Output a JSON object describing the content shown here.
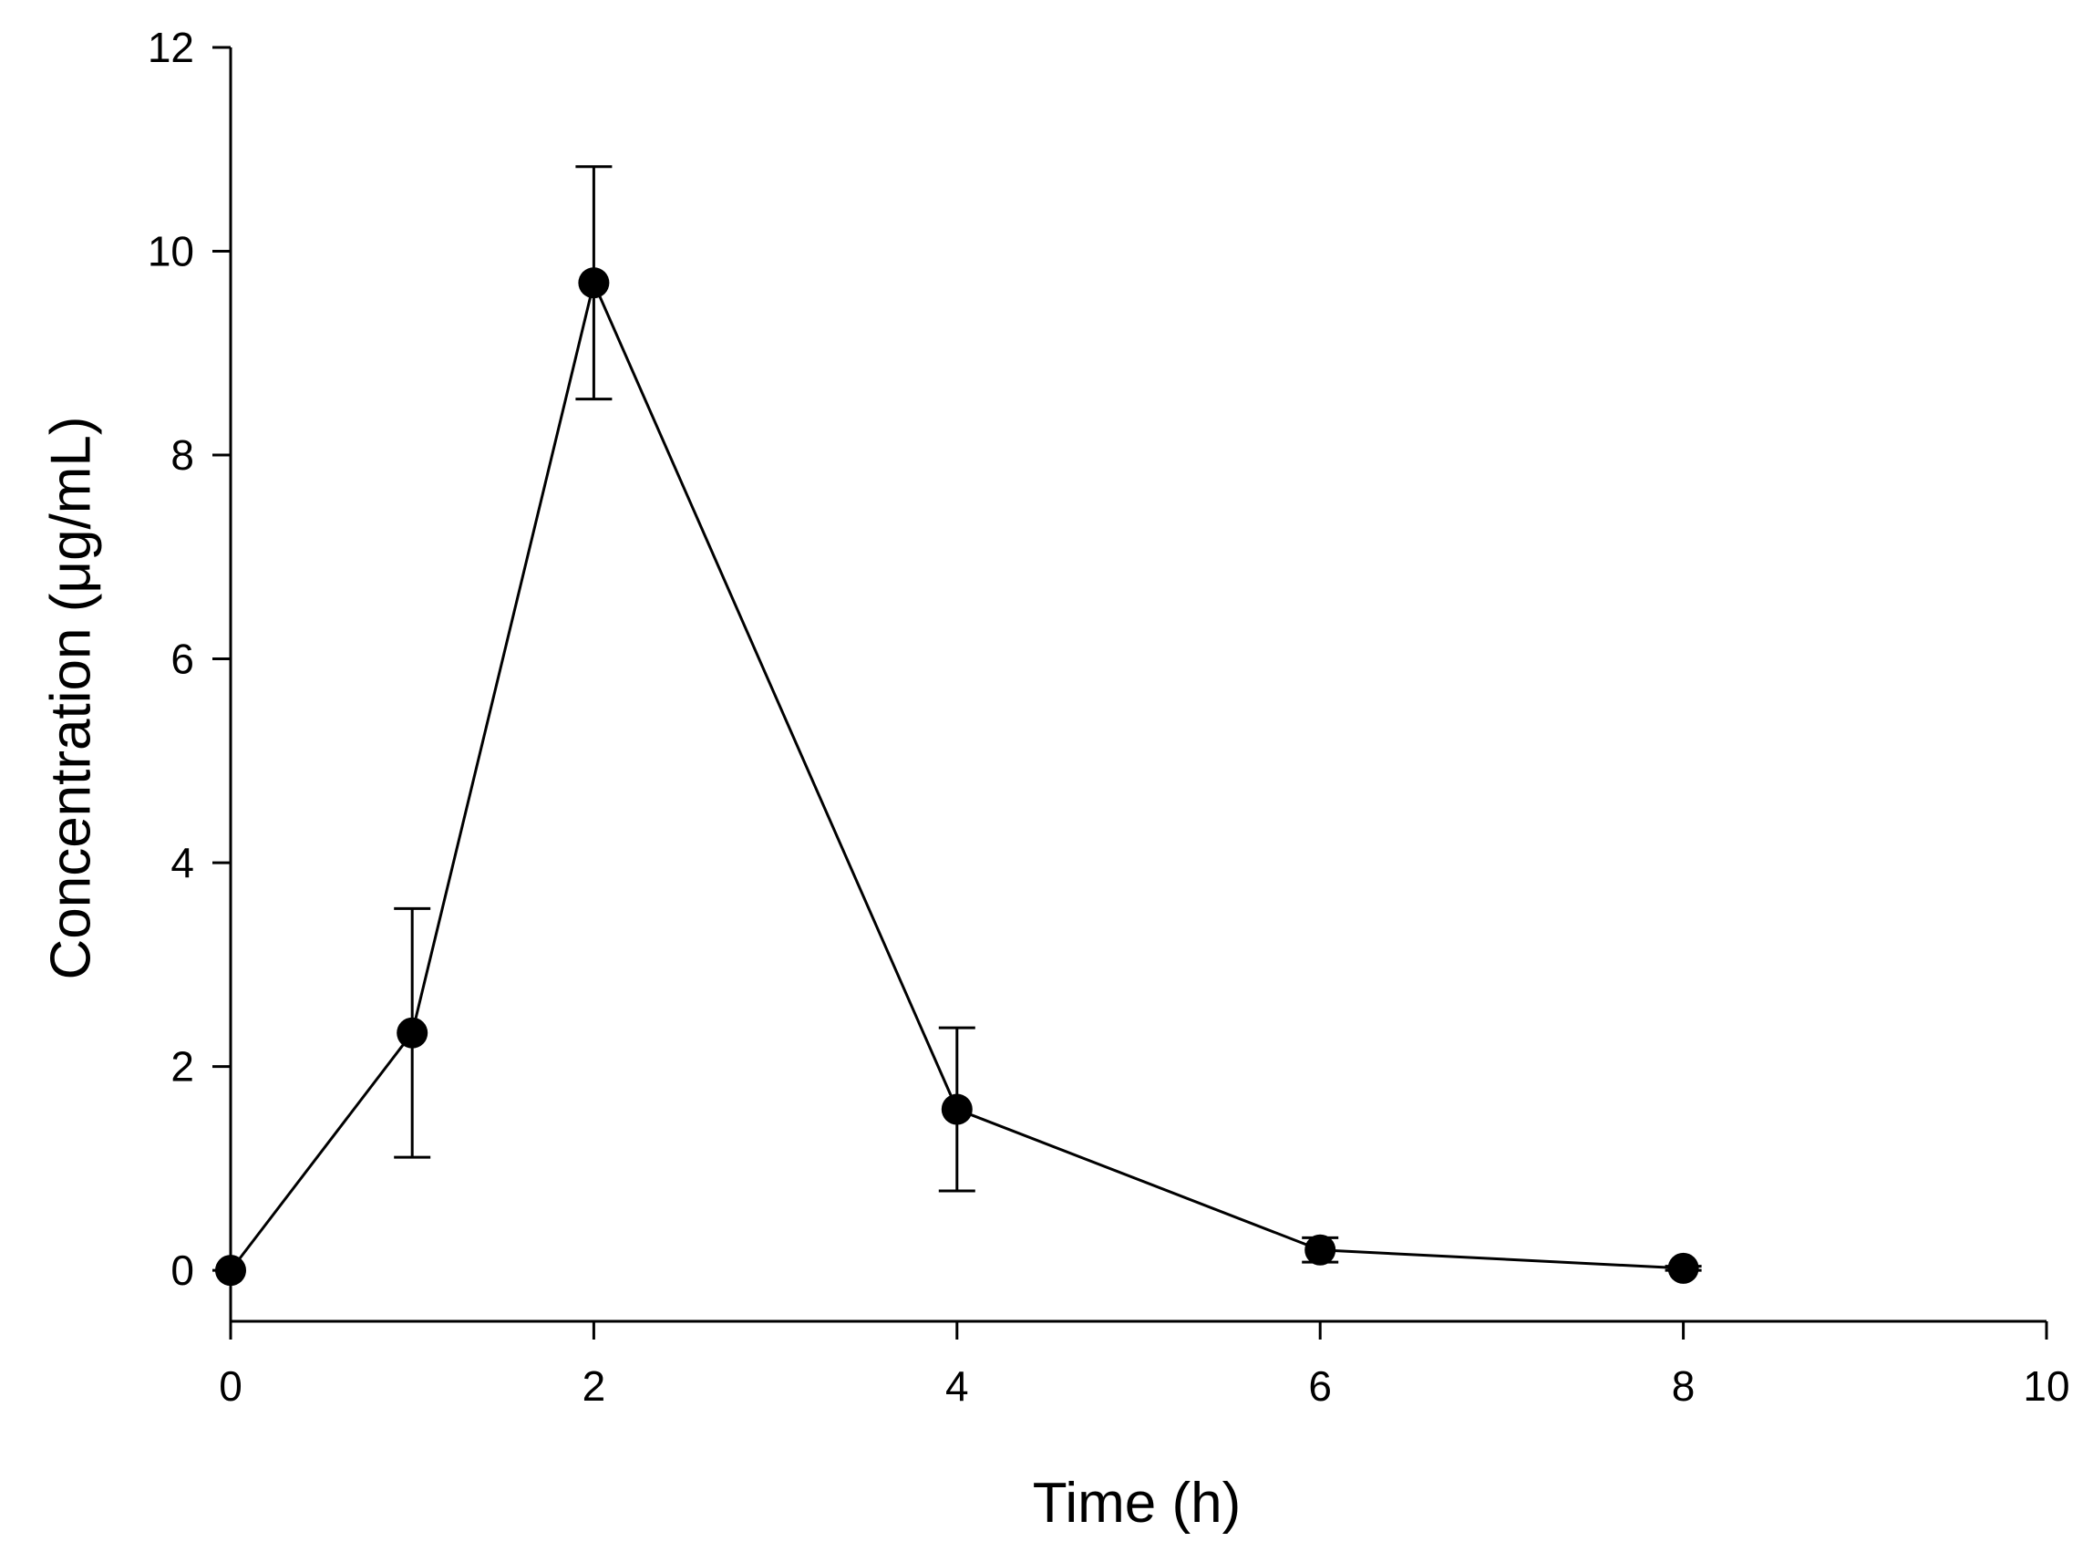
{
  "chart_data": {
    "type": "scatter",
    "xlabel": "Time (h)",
    "ylabel": "Concentration (μg/mL)",
    "xlim": [
      0,
      10
    ],
    "ylim": [
      -0.5,
      12
    ],
    "xticks": [
      0,
      2,
      4,
      6,
      8,
      10
    ],
    "yticks": [
      0,
      2,
      4,
      6,
      8,
      10,
      12
    ],
    "grid": false,
    "series": [
      {
        "x": [
          0,
          1,
          2,
          4,
          6,
          8
        ],
        "y": [
          0,
          2.33,
          9.69,
          1.58,
          0.2,
          0.02
        ],
        "error": [
          0,
          1.22,
          1.14,
          0.8,
          0.12,
          0.02
        ],
        "color": "#000000",
        "marker": "circle",
        "connected": true
      }
    ]
  }
}
